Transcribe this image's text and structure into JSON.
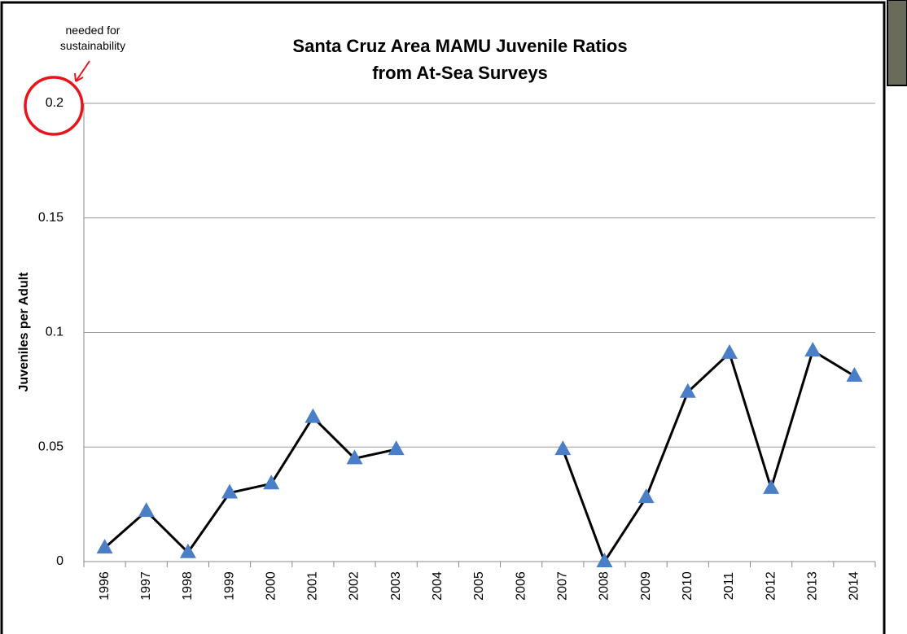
{
  "chart_data": {
    "type": "line",
    "title": "Santa Cruz Area MAMU Juvenile Ratios from At-Sea Surveys",
    "annotation": "needed for sustainability",
    "y_label": "Juveniles per Adult",
    "categories": [
      "1996",
      "1997",
      "1998",
      "1999",
      "2000",
      "2001",
      "2002",
      "2003",
      "2004",
      "2005",
      "2006",
      "2007",
      "2008",
      "2009",
      "2010",
      "2011",
      "2012",
      "2013",
      "2014"
    ],
    "values": [
      0.006,
      0.022,
      0.004,
      0.03,
      0.034,
      0.063,
      0.045,
      0.049,
      null,
      null,
      null,
      0.049,
      0,
      0.028,
      0.074,
      0.091,
      0.032,
      0.092,
      0.081
    ],
    "color": "#000000",
    "marker_color": "#4a7fc8",
    "ylim": [
      0,
      0.2
    ],
    "yticks": [
      0,
      0.05,
      0.1,
      0.15,
      0.2
    ],
    "grid": true
  }
}
